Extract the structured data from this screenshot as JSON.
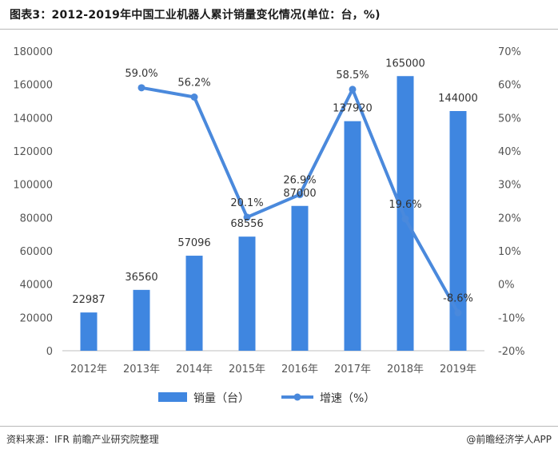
{
  "title": "图表3：2012-2019年中国工业机器人累计销量变化情况(单位：台，%)",
  "source": "资料来源：IFR 前瞻产业研究院整理",
  "credit": "@前瞻经济学人APP",
  "colors": {
    "bar": "#3f86e0",
    "line": "#4a89dc"
  },
  "chart_data": {
    "type": "bar",
    "categories": [
      "2012年",
      "2013年",
      "2014年",
      "2015年",
      "2016年",
      "2017年",
      "2018年",
      "2019年"
    ],
    "series": [
      {
        "name": "销量（台）",
        "type": "bar",
        "axis": "left",
        "values": [
          22987,
          36560,
          57096,
          68556,
          87000,
          137920,
          165000,
          144000
        ],
        "labels": [
          "22987",
          "36560",
          "57096",
          "68556",
          "87000",
          "137920",
          "165000",
          "144000"
        ]
      },
      {
        "name": "增速（%）",
        "type": "line",
        "axis": "right",
        "values": [
          null,
          59.0,
          56.2,
          20.1,
          26.9,
          58.5,
          19.6,
          -8.6
        ],
        "labels": [
          "",
          "59.0%",
          "56.2%",
          "20.1%",
          "26.9%",
          "58.5%",
          "19.6%",
          "-8.6%"
        ]
      }
    ],
    "yleft": {
      "lim": [
        0,
        180000
      ],
      "ticks": [
        0,
        20000,
        40000,
        60000,
        80000,
        100000,
        120000,
        140000,
        160000,
        180000
      ],
      "tick_labels": [
        "0",
        "20000",
        "40000",
        "60000",
        "80000",
        "100000",
        "120000",
        "140000",
        "160000",
        "180000"
      ]
    },
    "yright": {
      "lim": [
        -20,
        70
      ],
      "ticks": [
        -20,
        -10,
        0,
        10,
        20,
        30,
        40,
        50,
        60,
        70
      ],
      "tick_labels": [
        "-20%",
        "-10%",
        "0%",
        "10%",
        "20%",
        "30%",
        "40%",
        "50%",
        "60%",
        "70%"
      ]
    },
    "legend": {
      "position": "bottom",
      "items": [
        "销量（台）",
        "增速（%）"
      ]
    },
    "grid": false
  }
}
